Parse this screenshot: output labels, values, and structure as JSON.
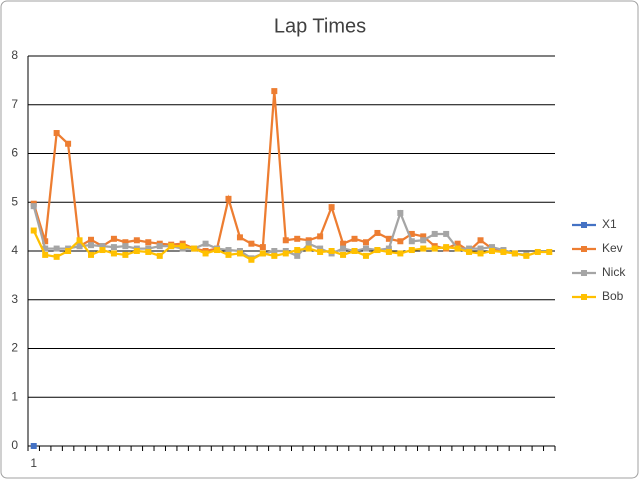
{
  "chart_data": {
    "type": "line",
    "title": "Lap Times",
    "categories": [
      "1",
      null,
      null,
      null,
      null,
      null,
      null,
      null,
      null,
      null,
      null,
      null,
      null,
      null,
      null,
      null,
      null,
      null,
      null,
      null,
      null,
      null,
      null,
      null,
      null,
      null,
      null,
      null,
      null,
      null,
      null,
      null,
      null,
      null,
      null,
      null,
      null,
      null,
      null,
      null,
      null,
      null,
      null,
      null,
      null,
      null
    ],
    "series": [
      {
        "name": "X1",
        "color": "#4472c4",
        "values": [
          0,
          null,
          null,
          null,
          null,
          null,
          null,
          null,
          null,
          null,
          null,
          null,
          null,
          null,
          null,
          null,
          null,
          null,
          null,
          null,
          null,
          null,
          null,
          null,
          null,
          null,
          null,
          null,
          null,
          null,
          null,
          null,
          null,
          null,
          null,
          null,
          null,
          null,
          null,
          null,
          null,
          null,
          null,
          null,
          null,
          null
        ]
      },
      {
        "name": "Kev",
        "color": "#ed7d31",
        "values": [
          4.97,
          4.2,
          6.42,
          6.2,
          4.1,
          4.23,
          4.1,
          4.25,
          4.18,
          4.22,
          4.18,
          4.15,
          4.13,
          4.15,
          4.05,
          4.0,
          4.05,
          5.07,
          4.28,
          4.15,
          4.08,
          7.28,
          4.22,
          4.25,
          4.22,
          4.3,
          4.9,
          4.15,
          4.25,
          4.18,
          4.37,
          4.25,
          4.2,
          4.35,
          4.3,
          4.1,
          4.05,
          4.15,
          4.0,
          4.22,
          4.05,
          4.0,
          3.95,
          null,
          null,
          null
        ]
      },
      {
        "name": "Nick",
        "color": "#a5a5a5",
        "values": [
          4.92,
          4.05,
          4.05,
          4.05,
          4.1,
          4.12,
          4.1,
          4.08,
          4.1,
          4.05,
          4.05,
          4.1,
          4.1,
          4.05,
          4.05,
          4.15,
          4.05,
          4.02,
          4.0,
          3.85,
          3.95,
          4.0,
          4.0,
          3.9,
          4.15,
          4.05,
          3.95,
          4.05,
          4.0,
          4.05,
          4.02,
          4.05,
          4.78,
          4.2,
          4.22,
          4.35,
          4.35,
          4.05,
          4.05,
          4.05,
          4.08,
          4.02,
          3.95,
          3.92,
          null,
          null
        ]
      },
      {
        "name": "Bob",
        "color": "#ffc000",
        "values": [
          4.42,
          3.92,
          3.88,
          4.0,
          4.22,
          3.92,
          4.02,
          3.95,
          3.92,
          4.0,
          3.98,
          3.9,
          4.1,
          4.1,
          4.05,
          3.95,
          4.02,
          3.92,
          3.95,
          3.82,
          3.95,
          3.9,
          3.95,
          4.02,
          4.05,
          3.98,
          4.0,
          3.92,
          4.0,
          3.9,
          4.02,
          3.98,
          3.95,
          4.02,
          4.05,
          4.05,
          4.08,
          4.05,
          3.98,
          3.95,
          4.0,
          3.98,
          3.95,
          3.9,
          3.98,
          3.98
        ]
      }
    ],
    "ylim": [
      0,
      8
    ],
    "yticks": [
      0,
      1,
      2,
      3,
      4,
      5,
      6,
      7,
      8
    ],
    "grid": true,
    "legend": "right"
  }
}
